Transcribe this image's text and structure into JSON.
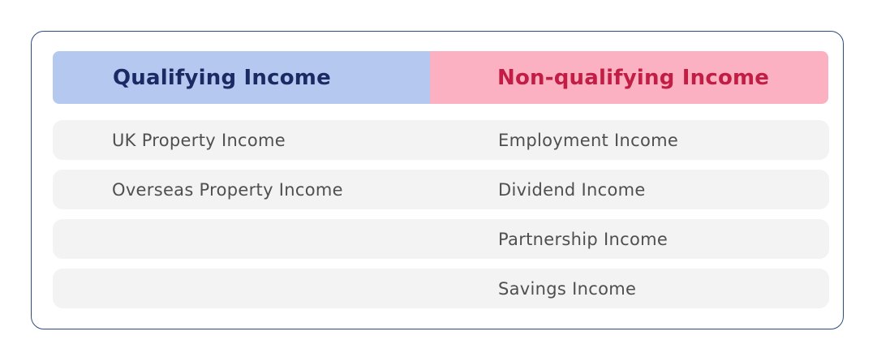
{
  "table": {
    "columns": [
      {
        "header": "Qualifying Income"
      },
      {
        "header": "Non-qualifying Income"
      }
    ],
    "rows": [
      {
        "left": "UK Property Income",
        "right": "Employment Income"
      },
      {
        "left": "Overseas Property Income",
        "right": "Dividend Income"
      },
      {
        "left": "",
        "right": "Partnership Income"
      },
      {
        "left": "",
        "right": "Savings Income"
      }
    ]
  },
  "colors": {
    "qualifying_header_bg": "#b4c8f0",
    "qualifying_header_text": "#1b2a63",
    "non_qualifying_header_bg": "#fbb1c1",
    "non_qualifying_header_text": "#c21d45",
    "row_bg": "#f3f3f3",
    "row_text": "#4f4f4f",
    "card_border": "#2e4c7a",
    "page_bg": "#ffffff"
  }
}
